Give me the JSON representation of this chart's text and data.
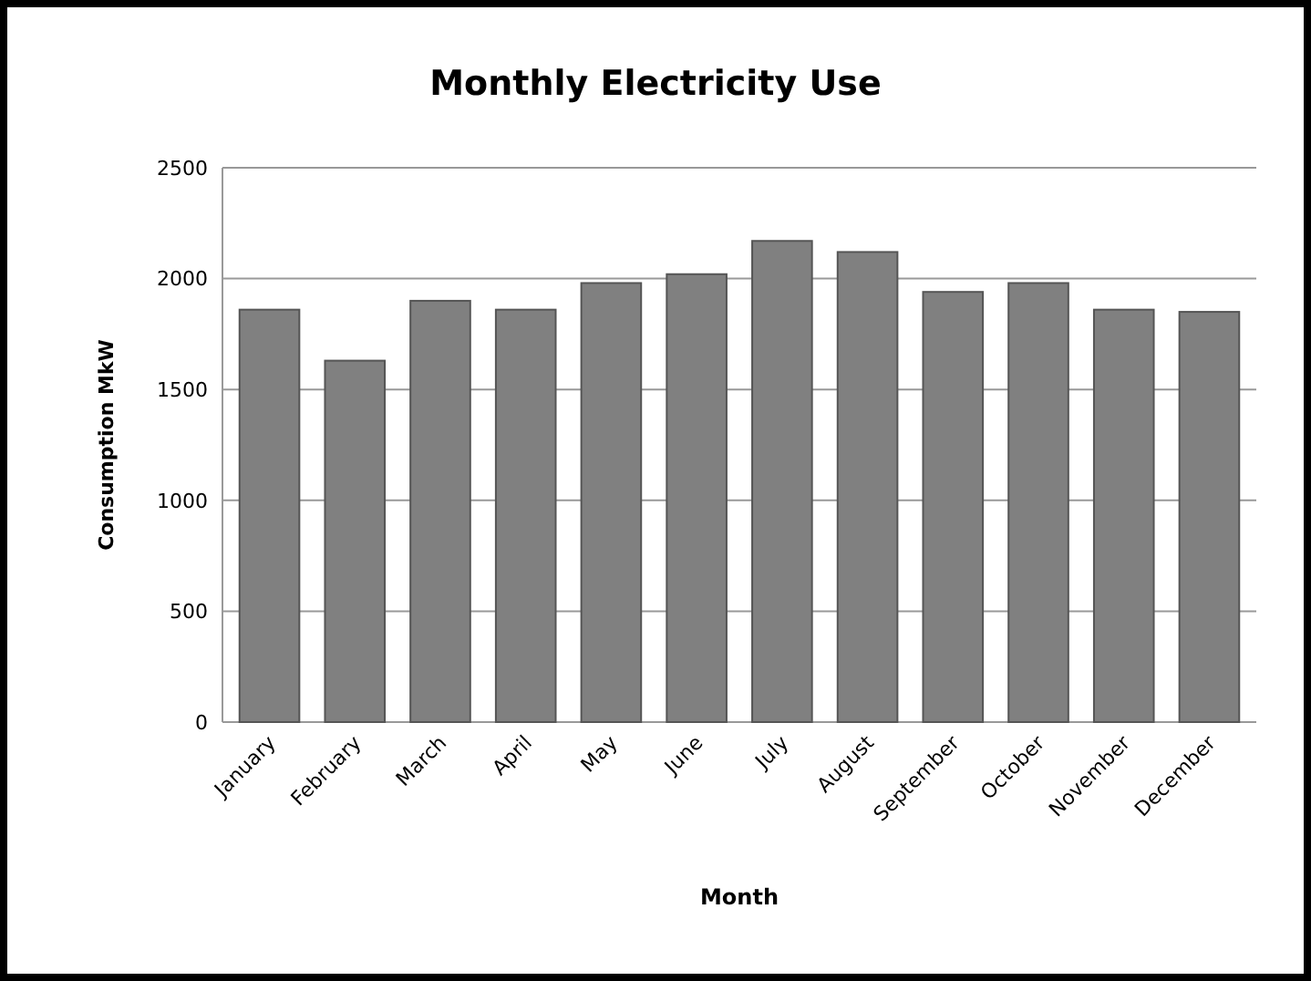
{
  "chart_data": {
    "type": "bar",
    "title": "Monthly Electricity Use",
    "xlabel": "Month",
    "ylabel": "Consumption MkW",
    "categories": [
      "January",
      "February",
      "March",
      "April",
      "May",
      "June",
      "July",
      "August",
      "September",
      "October",
      "November",
      "December"
    ],
    "values": [
      1860,
      1630,
      1900,
      1860,
      1980,
      2020,
      2170,
      2120,
      1940,
      1980,
      1860,
      1850
    ],
    "color": "#808080",
    "ylim": [
      0,
      2500
    ],
    "yticks": [
      0,
      500,
      1000,
      1500,
      2000,
      2500
    ],
    "grid": "y"
  }
}
